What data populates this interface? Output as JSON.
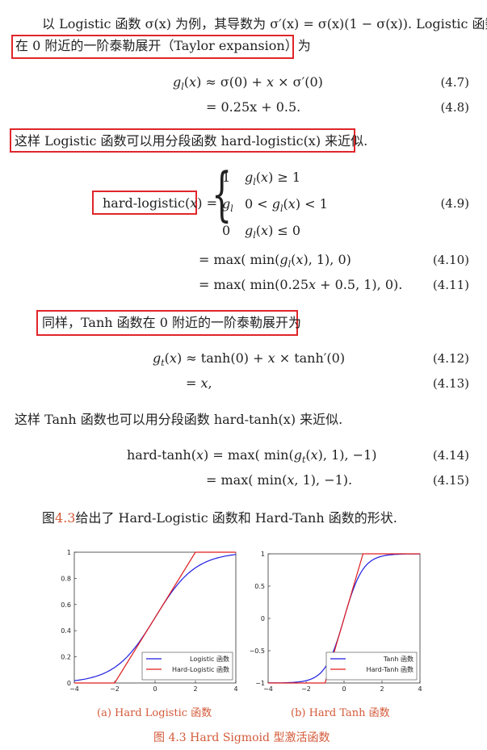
{
  "text": {
    "intro_line1": "以 Logistic 函数 σ(x) 为例，其导数为 σ′(x) = σ(x)(1 − σ(x)). Logistic 函数",
    "intro_line2": "在 0 附近的一阶泰勒展开（Taylor expansion）为",
    "eq_4_7": "g<sub>l</sub>(x) ≈ σ(0) + x × σ′(0)",
    "eq_4_8": "= 0.25x + 0.5.",
    "hard_logistic_intro": "这样 Logistic 函数可以用分段函数 hard-logistic(x) 来近似.",
    "hard_logistic_label": "hard-logistic(x)",
    "case_1_value": "1",
    "case_1_cond": "g_l(x) ≥ 1",
    "case_2_value": "g_l",
    "case_2_cond": "0 < g_l(x) < 1",
    "case_3_value": "0",
    "case_3_cond": "g_l(x) ≤ 0",
    "eq_4_10": "= max(min(g_l(x), 1), 0)",
    "eq_4_11": "= max(min(0.25x + 0.5, 1), 0).",
    "tanh_intro": "同样，Tanh 函数在 0 附近的一阶泰勒展开为",
    "eq_4_12": "g_t(x) ≈ tanh(0) + x × tanh′(0)",
    "eq_4_13": "= x,",
    "hard_tanh_intro": "这样 Tanh 函数也可以用分段函数 hard-tanh(x) 来近似.",
    "eq_4_14": "hard-tanh(x) = max(min(g_t(x), 1), −1)",
    "eq_4_15": "= max(min(x, 1), −1).",
    "figure_ref_prefix": "图",
    "figure_ref_num": "4.3",
    "figure_ref_suffix": "给出了 Hard-Logistic 函数和 Hard-Tanh 函数的形状.",
    "caption_a": "(a) Hard Logistic 函数",
    "caption_b": "(b) Hard Tanh 函数",
    "figure_caption": "图 4.3   Hard Sigmoid 型激活函数"
  },
  "equation_numbers": {
    "n47": "(4.7)",
    "n48": "(4.8)",
    "n49": "(4.9)",
    "n410": "(4.10)",
    "n411": "(4.11)",
    "n412": "(4.12)",
    "n413": "(4.13)",
    "n414": "(4.14)",
    "n415": "(4.15)"
  },
  "colors": {
    "highlight_box": "#e0262b",
    "caption": "#d35a3a",
    "smooth_curve": "#1f1fe0",
    "hard_curve": "#e01f1f"
  },
  "chart_data": [
    {
      "type": "line",
      "xlim": [
        -4,
        4
      ],
      "ylim": [
        0,
        1
      ],
      "xticks": [
        -4,
        -2,
        0,
        2,
        4
      ],
      "yticks": [
        0,
        0.2,
        0.4,
        0.6,
        0.8,
        1
      ],
      "legend_position": "bottom-right",
      "series": [
        {
          "name": "Logistic 函数",
          "color": "#1f1fe0",
          "function": "logistic"
        },
        {
          "name": "Hard-Logistic 函数",
          "color": "#e01f1f",
          "x": [
            -4,
            -2,
            2,
            4
          ],
          "y": [
            0,
            0,
            1,
            1
          ]
        }
      ]
    },
    {
      "type": "line",
      "xlim": [
        -4,
        4
      ],
      "ylim": [
        -1,
        1
      ],
      "xticks": [
        -4,
        -2,
        0,
        2,
        4
      ],
      "yticks": [
        -1,
        -0.5,
        0,
        0.5,
        1
      ],
      "legend_position": "bottom-right",
      "series": [
        {
          "name": "Tanh 函数",
          "color": "#1f1fe0",
          "function": "tanh"
        },
        {
          "name": "Hard-Tanh 函数",
          "color": "#e01f1f",
          "x": [
            -4,
            -1,
            1,
            4
          ],
          "y": [
            -1,
            -1,
            1,
            1
          ]
        }
      ]
    }
  ]
}
